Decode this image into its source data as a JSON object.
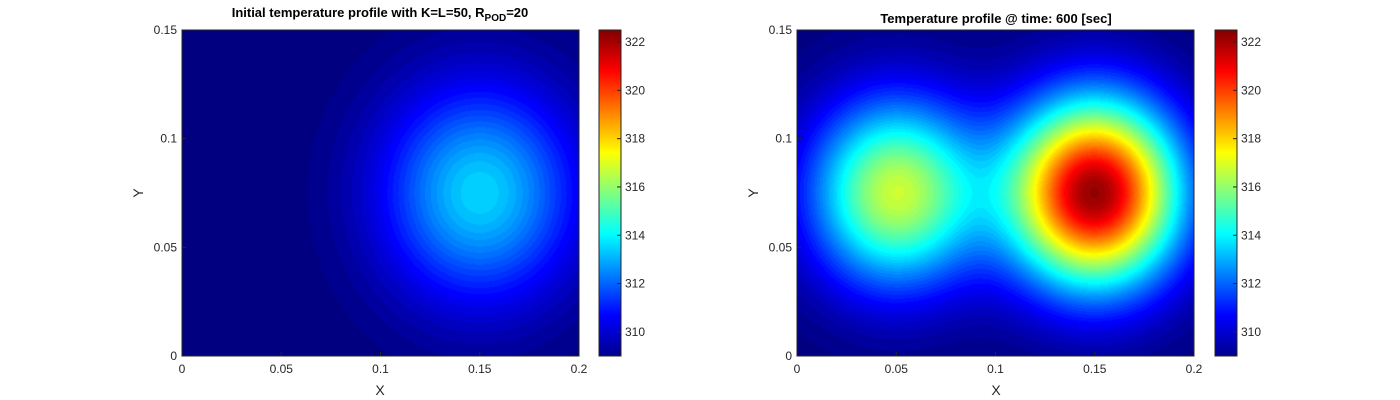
{
  "chart_data": [
    {
      "type": "heatmap",
      "title": "Initial temperature profile with K=L=50, R",
      "title_subscript": "POD",
      "title_suffix": "=20",
      "xlabel": "X",
      "ylabel": "Y",
      "xlim": [
        0,
        0.2
      ],
      "ylim": [
        0,
        0.15
      ],
      "xticks": [
        "0",
        "0.05",
        "0.1",
        "0.15",
        "0.2"
      ],
      "yticks": [
        "0",
        "0.05",
        "0.1",
        "0.15"
      ],
      "colorbar": {
        "min": 309,
        "max": 322.5,
        "ticks": [
          "310",
          "312",
          "314",
          "316",
          "318",
          "320",
          "322"
        ],
        "colormap": "jet"
      },
      "field": {
        "ambient": 309,
        "sources": [
          {
            "x": 0.15,
            "y": 0.075,
            "amplitude": 4.6,
            "radius": 0.035
          }
        ]
      }
    },
    {
      "type": "heatmap",
      "title": "Temperature profile @ time: 600 [sec]",
      "xlabel": "X",
      "ylabel": "Y",
      "xlim": [
        0,
        0.2
      ],
      "ylim": [
        0,
        0.15
      ],
      "xticks": [
        "0",
        "0.05",
        "0.1",
        "0.15",
        "0.2"
      ],
      "yticks": [
        "0",
        "0.05",
        "0.1",
        "0.15"
      ],
      "colorbar": {
        "min": 309,
        "max": 322.5,
        "ticks": [
          "310",
          "312",
          "314",
          "316",
          "318",
          "320",
          "322"
        ],
        "colormap": "jet"
      },
      "field": {
        "ambient": 309,
        "sources": [
          {
            "x": 0.05,
            "y": 0.075,
            "amplitude": 7.8,
            "radius": 0.03
          },
          {
            "x": 0.15,
            "y": 0.075,
            "amplitude": 13.3,
            "radius": 0.03
          }
        ]
      }
    }
  ]
}
